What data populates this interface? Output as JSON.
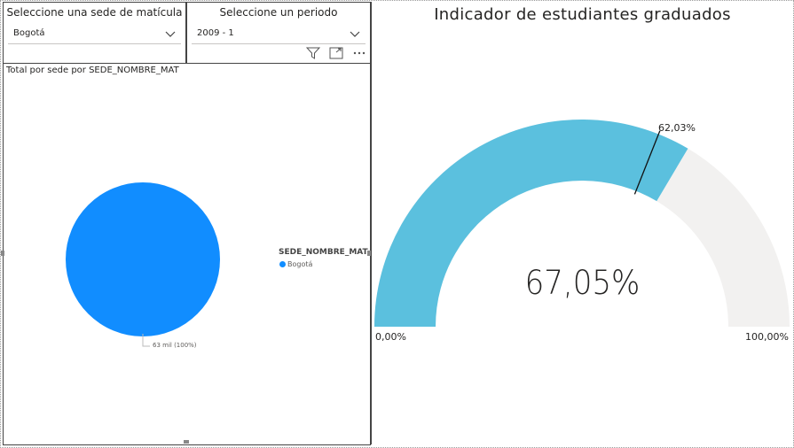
{
  "slicer_sede": {
    "title": "Seleccione una sede de matícula",
    "value": "Bogotá",
    "icon": "chevron-down-icon"
  },
  "slicer_periodo": {
    "title": "Seleccione un periodo",
    "value": "2009 - 1",
    "icon": "chevron-down-icon"
  },
  "toolbar": {
    "icons": [
      "filter-icon",
      "focus-mode-icon",
      "more-options-icon"
    ]
  },
  "pie": {
    "title": "Total por sede por SEDE_NOMBRE_MAT",
    "legend_title": "SEDE_NOMBRE_MAT",
    "slice_label": "63 mil (100%)",
    "color": "#118DFF"
  },
  "gauge": {
    "title": "Indicador de estudiantes graduados",
    "value_label": "67,05%",
    "min_label": "0,00%",
    "max_label": "100,00%",
    "target_label": "62,03%",
    "fill_color": "#5BC0DE",
    "track_color": "#F2F1F0"
  },
  "chart_data": [
    {
      "type": "pie",
      "title": "Total por sede por SEDE_NOMBRE_MAT",
      "legend": {
        "title": "SEDE_NOMBRE_MAT",
        "position": "right"
      },
      "categories": [
        "Bogotá"
      ],
      "values": [
        63000
      ],
      "data_labels": [
        "63 mil (100%)"
      ]
    },
    {
      "type": "gauge",
      "title": "Indicador de estudiantes graduados",
      "value": 67.05,
      "min": 0,
      "max": 100,
      "target": 62.03
    }
  ]
}
